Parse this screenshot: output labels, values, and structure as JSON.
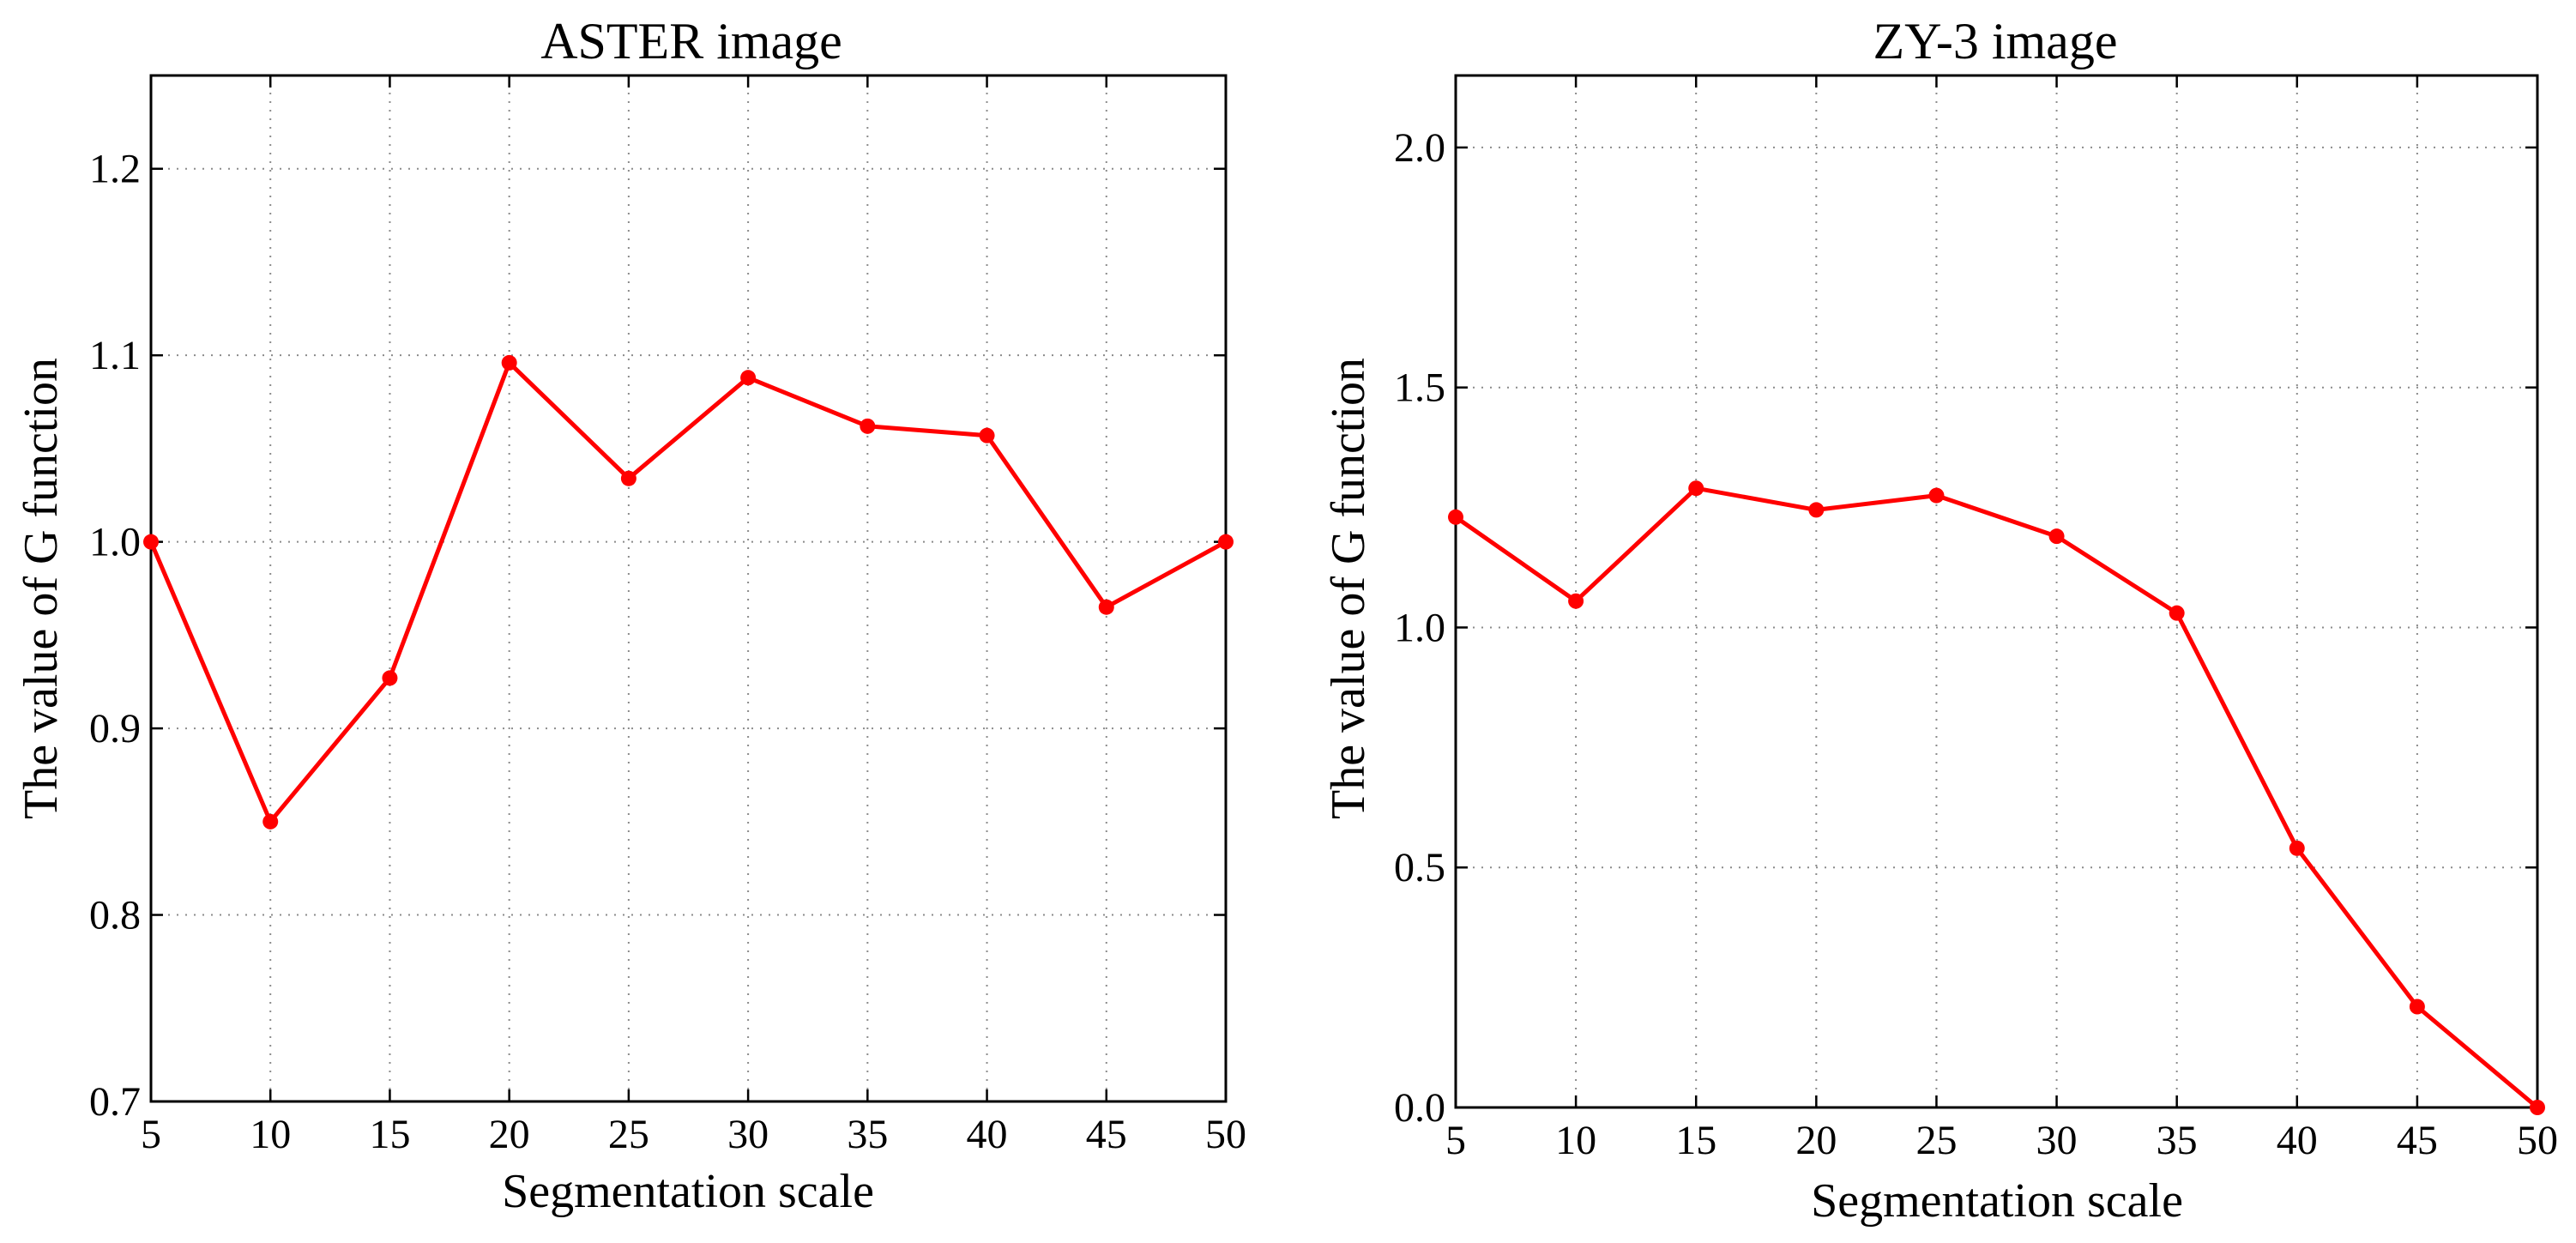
{
  "colors": {
    "series": "#ff0000",
    "axes": "#000000",
    "background": "#ffffff"
  },
  "chart_data": [
    {
      "type": "line",
      "title": "ASTER image",
      "xlabel": "Segmentation scale",
      "ylabel": "The value of G function",
      "xlim": [
        5,
        50
      ],
      "ylim": [
        0.7,
        1.25
      ],
      "xticks": [
        5,
        10,
        15,
        20,
        25,
        30,
        35,
        40,
        45,
        50
      ],
      "xtick_labels": [
        "5",
        "10",
        "15",
        "20",
        "25",
        "30",
        "35",
        "40",
        "45",
        "50"
      ],
      "yticks": [
        0.7,
        0.8,
        0.9,
        1.0,
        1.1,
        1.2
      ],
      "ytick_labels": [
        "0.7",
        "0.8",
        "0.9",
        "1.0",
        "1.1",
        "1.2"
      ],
      "grid": true,
      "series": [
        {
          "name": "G function",
          "marker": "circle",
          "x": [
            5,
            10,
            15,
            20,
            25,
            30,
            35,
            40,
            45,
            50
          ],
          "y": [
            1.0,
            0.85,
            0.927,
            1.096,
            1.034,
            1.088,
            1.062,
            1.057,
            0.965,
            1.0
          ]
        }
      ]
    },
    {
      "type": "line",
      "title": "ZY-3 image",
      "xlabel": "Segmentation scale",
      "ylabel": "The value of G function",
      "xlim": [
        5,
        50
      ],
      "ylim": [
        0.0,
        2.15
      ],
      "xticks": [
        5,
        10,
        15,
        20,
        25,
        30,
        35,
        40,
        45,
        50
      ],
      "xtick_labels": [
        "5",
        "10",
        "15",
        "20",
        "25",
        "30",
        "35",
        "40",
        "45",
        "50"
      ],
      "yticks": [
        0.0,
        0.5,
        1.0,
        1.5,
        2.0
      ],
      "ytick_labels": [
        "0.0",
        "0.5",
        "1.0",
        "1.5",
        "2.0"
      ],
      "grid": true,
      "series": [
        {
          "name": "G function",
          "marker": "circle",
          "x": [
            5,
            10,
            15,
            20,
            25,
            30,
            35,
            40,
            45,
            50
          ],
          "y": [
            1.23,
            1.055,
            1.29,
            1.245,
            1.275,
            1.19,
            1.03,
            0.54,
            0.21,
            0.0
          ]
        }
      ]
    }
  ]
}
